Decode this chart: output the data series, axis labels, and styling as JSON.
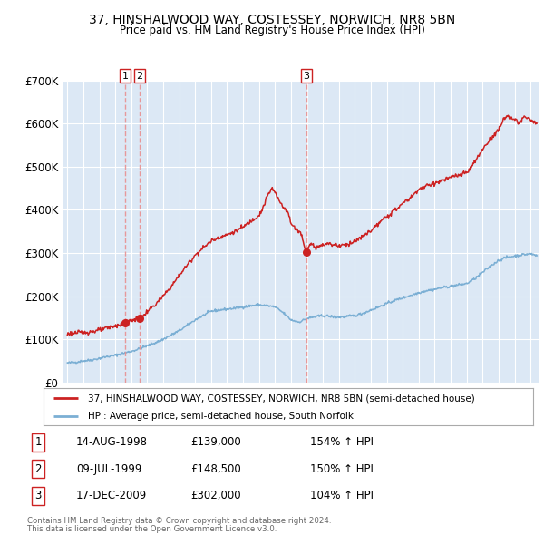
{
  "title": "37, HINSHALWOOD WAY, COSTESSEY, NORWICH, NR8 5BN",
  "subtitle": "Price paid vs. HM Land Registry's House Price Index (HPI)",
  "legend_line1": "37, HINSHALWOOD WAY, COSTESSEY, NORWICH, NR8 5BN (semi-detached house)",
  "legend_line2": "HPI: Average price, semi-detached house, South Norfolk",
  "footer1": "Contains HM Land Registry data © Crown copyright and database right 2024.",
  "footer2": "This data is licensed under the Open Government Licence v3.0.",
  "sales": [
    {
      "label": "1",
      "date": "14-AUG-1998",
      "price": 139000,
      "hpi_pct": "154% ↑ HPI",
      "x_year": 1998.62
    },
    {
      "label": "2",
      "date": "09-JUL-1999",
      "price": 148500,
      "hpi_pct": "150% ↑ HPI",
      "x_year": 1999.52
    },
    {
      "label": "3",
      "date": "17-DEC-2009",
      "price": 302000,
      "hpi_pct": "104% ↑ HPI",
      "x_year": 2009.96
    }
  ],
  "hpi_color": "#7bafd4",
  "price_color": "#cc2222",
  "plot_bg": "#dce8f5",
  "grid_color": "#ffffff",
  "dashed_color": "#e89090",
  "ylim": [
    0,
    700000
  ],
  "yticks": [
    0,
    100000,
    200000,
    300000,
    400000,
    500000,
    600000,
    700000
  ],
  "ytick_labels": [
    "£0",
    "£100K",
    "£200K",
    "£300K",
    "£400K",
    "£500K",
    "£600K",
    "£700K"
  ],
  "xlim_start": 1994.7,
  "xlim_end": 2024.5,
  "xticks": [
    1995,
    1996,
    1997,
    1998,
    1999,
    2000,
    2001,
    2002,
    2003,
    2004,
    2005,
    2006,
    2007,
    2008,
    2009,
    2010,
    2011,
    2012,
    2013,
    2014,
    2015,
    2016,
    2017,
    2018,
    2019,
    2020,
    2021,
    2022,
    2023,
    2024
  ]
}
